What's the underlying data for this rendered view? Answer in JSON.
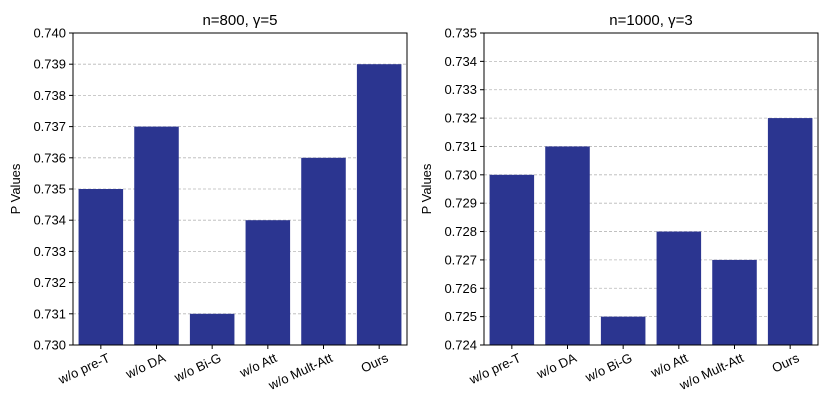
{
  "chart_data": [
    {
      "type": "bar",
      "title": "n=800, γ=5",
      "ylabel": "P Values",
      "xlabel": "",
      "categories": [
        "w/o pre-T",
        "w/o DA",
        "w/o Bi-G",
        "w/o Att",
        "w/o Mult-Att",
        "Ours"
      ],
      "values": [
        0.735,
        0.737,
        0.731,
        0.734,
        0.736,
        0.739
      ],
      "ylim": [
        0.73,
        0.74
      ],
      "yticks": [
        "0.730",
        "0.731",
        "0.732",
        "0.733",
        "0.734",
        "0.735",
        "0.736",
        "0.737",
        "0.738",
        "0.739",
        "0.740"
      ],
      "grid": "horizontal-dashed",
      "bar_color": "#2b3590"
    },
    {
      "type": "bar",
      "title": "n=1000, γ=3",
      "ylabel": "P Values",
      "xlabel": "",
      "categories": [
        "w/o pre-T",
        "w/o DA",
        "w/o Bi-G",
        "w/o Att",
        "w/o Mult-Att",
        "Ours"
      ],
      "values": [
        0.73,
        0.731,
        0.725,
        0.728,
        0.727,
        0.732
      ],
      "ylim": [
        0.724,
        0.735
      ],
      "yticks": [
        "0.724",
        "0.725",
        "0.726",
        "0.727",
        "0.728",
        "0.729",
        "0.730",
        "0.731",
        "0.732",
        "0.733",
        "0.734",
        "0.735"
      ],
      "grid": "horizontal-dashed",
      "bar_color": "#2b3590"
    }
  ]
}
